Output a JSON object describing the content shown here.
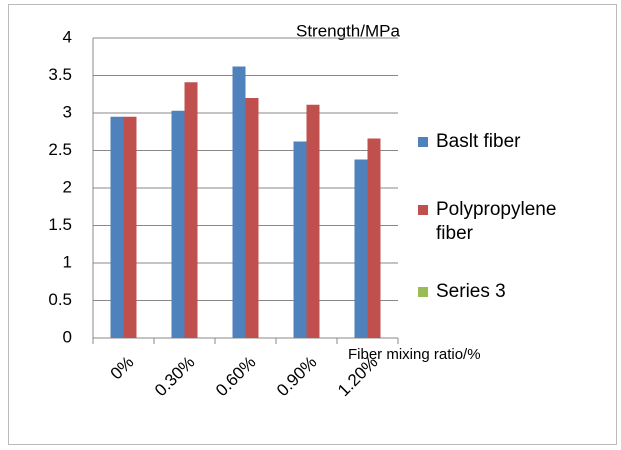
{
  "chart_data": {
    "type": "bar",
    "title": "Strength/MPa",
    "x_label": "Fiber mixing ratio/%",
    "categories": [
      "0%",
      "0.30%",
      "0.60%",
      "0.90%",
      "1.20%"
    ],
    "series": [
      {
        "name": "Baslt fiber",
        "color": "#4f81bd",
        "values": [
          2.95,
          3.03,
          3.62,
          2.62,
          2.38
        ]
      },
      {
        "name": "Polypropylene fiber",
        "color": "#c0504d",
        "values": [
          2.95,
          3.41,
          3.2,
          3.11,
          2.66
        ]
      },
      {
        "name": "Series 3",
        "color": "#9bbb59",
        "values": [
          null,
          null,
          null,
          null,
          null
        ]
      }
    ],
    "ylim": [
      0,
      4
    ],
    "yticks": [
      0,
      0.5,
      1,
      1.5,
      2,
      2.5,
      3,
      3.5,
      4
    ],
    "grid": true,
    "legend": "right"
  }
}
